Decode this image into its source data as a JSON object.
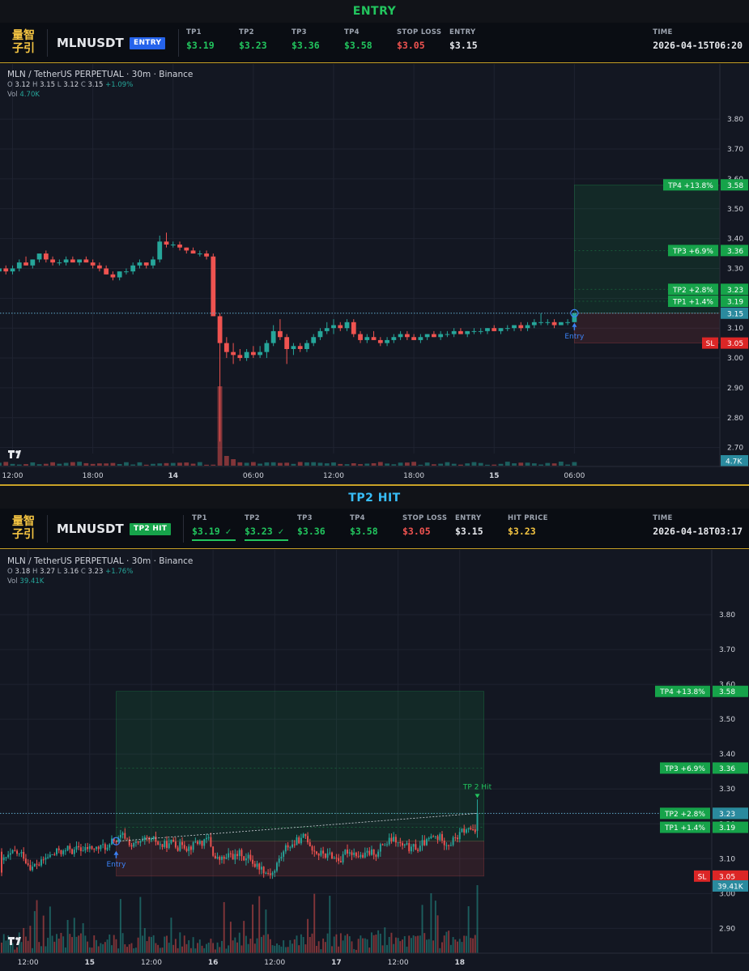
{
  "banners": {
    "entry": "ENTRY",
    "hit": "TP2 HIT"
  },
  "logo_text": "量智子引",
  "entry_panel": {
    "symbol": "MLNUSDT",
    "badge": "ENTRY",
    "fields": [
      {
        "label": "TP1",
        "value": "$3.19",
        "color": "green"
      },
      {
        "label": "TP2",
        "value": "$3.23",
        "color": "green"
      },
      {
        "label": "TP3",
        "value": "$3.36",
        "color": "green"
      },
      {
        "label": "TP4",
        "value": "$3.58",
        "color": "green"
      },
      {
        "label": "STOP LOSS",
        "value": "$3.05",
        "color": "red"
      },
      {
        "label": "ENTRY",
        "value": "$3.15",
        "color": "white"
      }
    ],
    "time_label": "TIME",
    "time_value": "2026-04-15T06:20"
  },
  "hit_panel": {
    "symbol": "MLNUSDT",
    "badge": "TP2 HIT",
    "fields": [
      {
        "label": "TP1",
        "value": "$3.19 ✓",
        "color": "green",
        "underline": true
      },
      {
        "label": "TP2",
        "value": "$3.23 ✓",
        "color": "green",
        "underline": true
      },
      {
        "label": "TP3",
        "value": "$3.36",
        "color": "green"
      },
      {
        "label": "TP4",
        "value": "$3.58",
        "color": "green"
      },
      {
        "label": "STOP LOSS",
        "value": "$3.05",
        "color": "red"
      },
      {
        "label": "ENTRY",
        "value": "$3.15",
        "color": "white"
      },
      {
        "label": "HIT PRICE",
        "value": "$3.23",
        "color": "gold"
      }
    ],
    "time_label": "TIME",
    "time_value": "2026-04-18T03:17"
  },
  "colors": {
    "up": "#26a69a",
    "down": "#ef5350",
    "tp_label": "#16a34a",
    "sl_label": "#dc2626",
    "entry_marker": "#3b82f6",
    "bg": "#131722",
    "grid": "#1f2330",
    "axis_text": "#d1d4dc"
  },
  "chart_data": [
    {
      "type": "candlestick",
      "title": "MLN / TetherUS PERPETUAL · 30m · Binance",
      "ohlc_label": {
        "O": "3.12",
        "H": "3.15",
        "L": "3.12",
        "C": "3.15",
        "change": "+1.09%"
      },
      "volume_label": {
        "label": "Vol",
        "value": "4.70K"
      },
      "y_ticks": [
        "3.80",
        "3.70",
        "3.60",
        "3.50",
        "3.40",
        "3.30",
        "3.20",
        "3.10",
        "3.00",
        "2.90",
        "2.80",
        "2.70"
      ],
      "ylim": [
        2.68,
        3.89
      ],
      "x_ticks": [
        {
          "label": "12:00",
          "bold": false,
          "bar": 2
        },
        {
          "label": "18:00",
          "bold": false,
          "bar": 14
        },
        {
          "label": "14",
          "bold": true,
          "bar": 26
        },
        {
          "label": "06:00",
          "bold": false,
          "bar": 38
        },
        {
          "label": "12:00",
          "bold": false,
          "bar": 50
        },
        {
          "label": "18:00",
          "bold": false,
          "bar": 62
        },
        {
          "label": "15",
          "bold": true,
          "bar": 74
        },
        {
          "label": "06:00",
          "bold": false,
          "bar": 86
        }
      ],
      "levels": [
        {
          "name": "TP4",
          "label": "TP4 +13.8%",
          "price": 3.58,
          "price_text": "3.58"
        },
        {
          "name": "TP3",
          "label": "TP3 +6.9%",
          "price": 3.36,
          "price_text": "3.36"
        },
        {
          "name": "TP2",
          "label": "TP2 +2.8%",
          "price": 3.23,
          "price_text": "3.23"
        },
        {
          "name": "TP1",
          "label": "TP1 +1.4%",
          "price": 3.19,
          "price_text": "3.19"
        },
        {
          "name": "SL",
          "label": "SL",
          "price": 3.05,
          "price_text": "3.05"
        }
      ],
      "current_price": {
        "price": 3.15,
        "text": "3.15"
      },
      "volume_badge": "4.7K",
      "entry": {
        "bar": 86,
        "price": 3.15,
        "label": "Entry"
      },
      "zone_start_bar": 86,
      "candles": [
        [
          3.29,
          3.3,
          3.28,
          3.3
        ],
        [
          3.3,
          3.31,
          3.28,
          3.29
        ],
        [
          3.29,
          3.31,
          3.28,
          3.3
        ],
        [
          3.3,
          3.33,
          3.29,
          3.32
        ],
        [
          3.32,
          3.34,
          3.31,
          3.31
        ],
        [
          3.31,
          3.33,
          3.3,
          3.33
        ],
        [
          3.33,
          3.35,
          3.32,
          3.35
        ],
        [
          3.35,
          3.36,
          3.32,
          3.33
        ],
        [
          3.33,
          3.34,
          3.31,
          3.32
        ],
        [
          3.32,
          3.33,
          3.31,
          3.32
        ],
        [
          3.32,
          3.34,
          3.31,
          3.33
        ],
        [
          3.33,
          3.34,
          3.32,
          3.32
        ],
        [
          3.32,
          3.33,
          3.31,
          3.33
        ],
        [
          3.33,
          3.34,
          3.32,
          3.32
        ],
        [
          3.32,
          3.33,
          3.3,
          3.31
        ],
        [
          3.31,
          3.32,
          3.29,
          3.3
        ],
        [
          3.3,
          3.31,
          3.28,
          3.28
        ],
        [
          3.28,
          3.29,
          3.26,
          3.27
        ],
        [
          3.27,
          3.29,
          3.26,
          3.29
        ],
        [
          3.29,
          3.3,
          3.28,
          3.29
        ],
        [
          3.29,
          3.32,
          3.28,
          3.31
        ],
        [
          3.31,
          3.33,
          3.3,
          3.32
        ],
        [
          3.32,
          3.32,
          3.3,
          3.31
        ],
        [
          3.31,
          3.34,
          3.3,
          3.33
        ],
        [
          3.33,
          3.41,
          3.32,
          3.39
        ],
        [
          3.39,
          3.42,
          3.37,
          3.38
        ],
        [
          3.38,
          3.39,
          3.37,
          3.38
        ],
        [
          3.38,
          3.39,
          3.36,
          3.37
        ],
        [
          3.37,
          3.37,
          3.35,
          3.36
        ],
        [
          3.36,
          3.37,
          3.35,
          3.35
        ],
        [
          3.35,
          3.36,
          3.34,
          3.35
        ],
        [
          3.35,
          3.36,
          3.33,
          3.34
        ],
        [
          3.34,
          3.35,
          3.14,
          3.14
        ],
        [
          3.14,
          3.15,
          2.72,
          3.05
        ],
        [
          3.05,
          3.07,
          3.0,
          3.02
        ],
        [
          3.02,
          3.05,
          2.98,
          3.01
        ],
        [
          3.01,
          3.03,
          2.99,
          3.0
        ],
        [
          3.0,
          3.03,
          2.99,
          3.02
        ],
        [
          3.02,
          3.04,
          3.0,
          3.01
        ],
        [
          3.01,
          3.04,
          3.0,
          3.02
        ],
        [
          3.02,
          3.06,
          3.0,
          3.05
        ],
        [
          3.05,
          3.11,
          3.04,
          3.09
        ],
        [
          3.09,
          3.13,
          3.06,
          3.07
        ],
        [
          3.07,
          3.08,
          2.98,
          3.03
        ],
        [
          3.03,
          3.05,
          3.01,
          3.04
        ],
        [
          3.04,
          3.05,
          3.02,
          3.03
        ],
        [
          3.03,
          3.06,
          3.02,
          3.05
        ],
        [
          3.05,
          3.08,
          3.04,
          3.07
        ],
        [
          3.07,
          3.1,
          3.06,
          3.09
        ],
        [
          3.09,
          3.12,
          3.08,
          3.1
        ],
        [
          3.1,
          3.13,
          3.08,
          3.11
        ],
        [
          3.11,
          3.12,
          3.09,
          3.1
        ],
        [
          3.1,
          3.13,
          3.09,
          3.12
        ],
        [
          3.12,
          3.13,
          3.07,
          3.08
        ],
        [
          3.08,
          3.09,
          3.05,
          3.06
        ],
        [
          3.06,
          3.08,
          3.05,
          3.07
        ],
        [
          3.07,
          3.09,
          3.06,
          3.06
        ],
        [
          3.06,
          3.07,
          3.04,
          3.05
        ],
        [
          3.05,
          3.07,
          3.04,
          3.06
        ],
        [
          3.06,
          3.08,
          3.05,
          3.07
        ],
        [
          3.07,
          3.09,
          3.06,
          3.08
        ],
        [
          3.08,
          3.09,
          3.06,
          3.07
        ],
        [
          3.07,
          3.08,
          3.06,
          3.06
        ],
        [
          3.06,
          3.08,
          3.05,
          3.07
        ],
        [
          3.07,
          3.08,
          3.06,
          3.08
        ],
        [
          3.08,
          3.09,
          3.07,
          3.07
        ],
        [
          3.07,
          3.09,
          3.06,
          3.08
        ],
        [
          3.08,
          3.09,
          3.07,
          3.08
        ],
        [
          3.08,
          3.1,
          3.07,
          3.09
        ],
        [
          3.09,
          3.1,
          3.08,
          3.08
        ],
        [
          3.08,
          3.09,
          3.07,
          3.09
        ],
        [
          3.09,
          3.1,
          3.08,
          3.09
        ],
        [
          3.09,
          3.1,
          3.08,
          3.09
        ],
        [
          3.09,
          3.1,
          3.08,
          3.1
        ],
        [
          3.1,
          3.11,
          3.09,
          3.09
        ],
        [
          3.09,
          3.1,
          3.08,
          3.1
        ],
        [
          3.1,
          3.11,
          3.09,
          3.1
        ],
        [
          3.1,
          3.11,
          3.09,
          3.11
        ],
        [
          3.11,
          3.12,
          3.09,
          3.1
        ],
        [
          3.1,
          3.12,
          3.09,
          3.11
        ],
        [
          3.11,
          3.13,
          3.1,
          3.12
        ],
        [
          3.12,
          3.15,
          3.11,
          3.12
        ],
        [
          3.12,
          3.13,
          3.11,
          3.12
        ],
        [
          3.12,
          3.13,
          3.1,
          3.11
        ],
        [
          3.11,
          3.12,
          3.11,
          3.12
        ],
        [
          3.12,
          3.13,
          3.11,
          3.12
        ],
        [
          3.12,
          3.15,
          3.12,
          3.15
        ]
      ]
    },
    {
      "type": "candlestick",
      "title": "MLN / TetherUS PERPETUAL · 30m · Binance",
      "ohlc_label": {
        "O": "3.18",
        "H": "3.27",
        "L": "3.16",
        "C": "3.23",
        "change": "+1.76%"
      },
      "volume_label": {
        "label": "Vol",
        "value": "39.41K"
      },
      "y_ticks": [
        "3.80",
        "3.70",
        "3.60",
        "3.50",
        "3.40",
        "3.30",
        "3.20",
        "3.10",
        "3.00",
        "2.90"
      ],
      "ylim": [
        2.83,
        3.89
      ],
      "x_ticks": [
        {
          "label": "12:00",
          "bold": false,
          "bar": 12
        },
        {
          "label": "15",
          "bold": true,
          "bar": 40
        },
        {
          "label": "12:00",
          "bold": false,
          "bar": 68
        },
        {
          "label": "16",
          "bold": true,
          "bar": 96
        },
        {
          "label": "12:00",
          "bold": false,
          "bar": 124
        },
        {
          "label": "17",
          "bold": true,
          "bar": 152
        },
        {
          "label": "12:00",
          "bold": false,
          "bar": 180
        },
        {
          "label": "18",
          "bold": true,
          "bar": 208
        }
      ],
      "levels": [
        {
          "name": "TP4",
          "label": "TP4 +13.8%",
          "price": 3.58,
          "price_text": "3.58"
        },
        {
          "name": "TP3",
          "label": "TP3 +6.9%",
          "price": 3.36,
          "price_text": "3.36"
        },
        {
          "name": "TP2",
          "label": "TP2 +2.8%",
          "price": 3.23,
          "price_text": "3.23"
        },
        {
          "name": "TP1",
          "label": "TP1 +1.4%",
          "price": 3.19,
          "price_text": "3.19"
        },
        {
          "name": "SL",
          "label": "SL",
          "price": 3.05,
          "price_text": "3.05"
        }
      ],
      "current_price": {
        "price": 3.23,
        "text": "3.23"
      },
      "volume_badge": "39.41K",
      "entry": {
        "bar": 52,
        "price": 3.15,
        "label": "Entry"
      },
      "hit": {
        "bar": 216,
        "price": 3.23,
        "label": "TP 2 Hit"
      },
      "zone_start_bar": 52,
      "zone_end_bar": 219,
      "candles": []
    }
  ]
}
